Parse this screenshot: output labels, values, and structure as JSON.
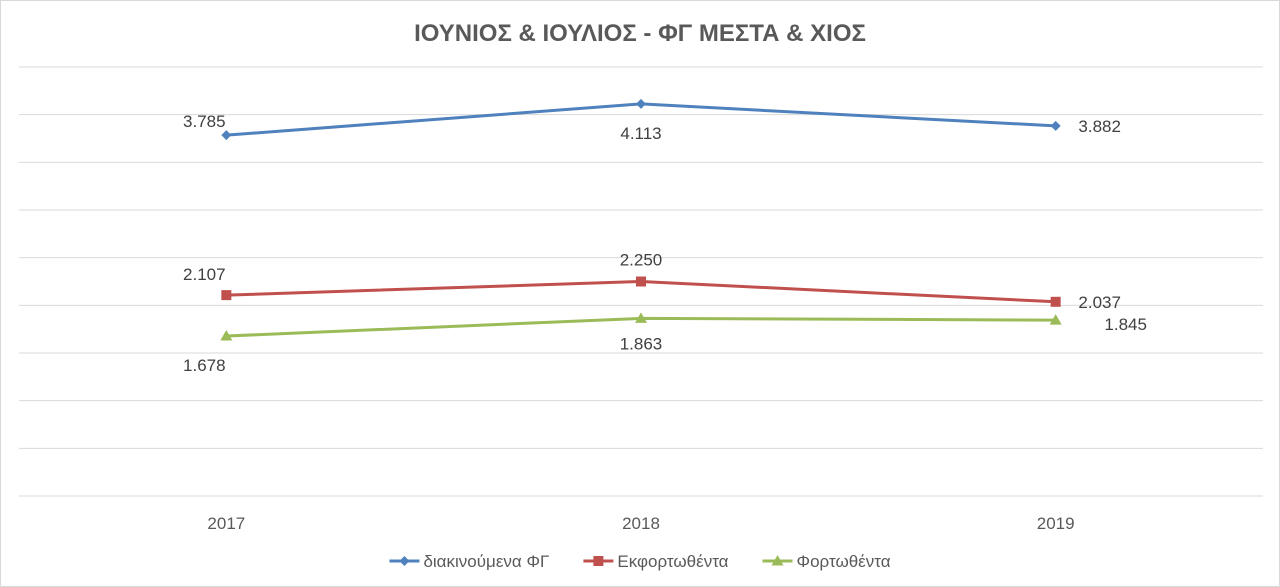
{
  "chart_data": {
    "type": "line",
    "title": "ΙΟΥΝΙΟΣ & ΙΟΥΛΙΟΣ - ΦΓ ΜΕΣΤΑ & ΧΙΟΣ",
    "xlabel": "",
    "ylabel": "",
    "categories": [
      "2017",
      "2018",
      "2019"
    ],
    "ylim": [
      0,
      4500
    ],
    "grid": true,
    "legend_position": "bottom",
    "series": [
      {
        "name": "διακινούμενα ΦΓ",
        "values": [
          3785,
          4113,
          3882
        ],
        "labels": [
          "3.785",
          "4.113",
          "3.882"
        ],
        "color": "#4F81BD",
        "marker": "diamond"
      },
      {
        "name": "Εκφορτωθέντα",
        "values": [
          2107,
          2250,
          2037
        ],
        "labels": [
          "2.107",
          "2.250",
          "2.037"
        ],
        "color": "#C0504D",
        "marker": "square"
      },
      {
        "name": "Φορτωθέντα",
        "values": [
          1678,
          1863,
          1845
        ],
        "labels": [
          "1.678",
          "1.863",
          "1.845"
        ],
        "color": "#9BBB59",
        "marker": "triangle"
      }
    ]
  }
}
